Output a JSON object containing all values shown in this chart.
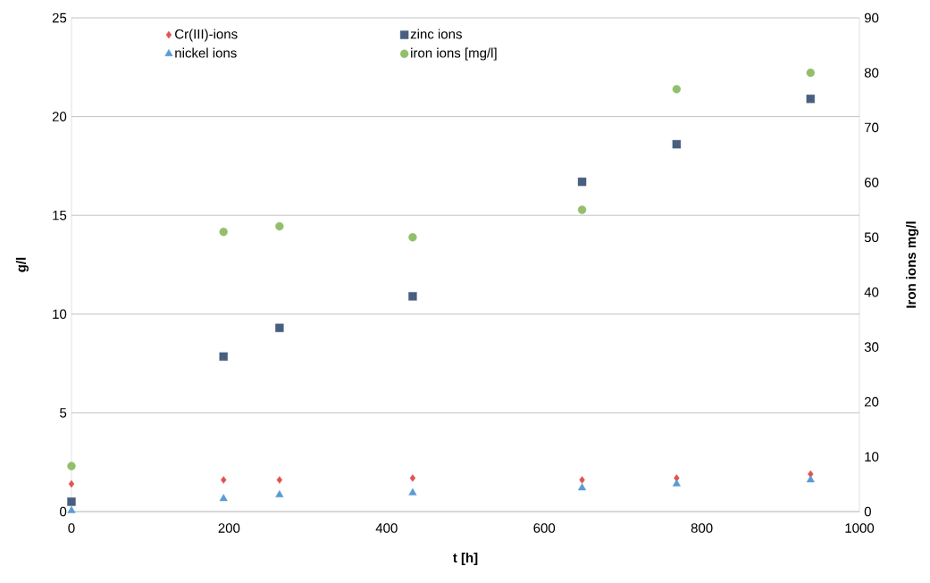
{
  "chart_data": {
    "type": "scatter",
    "xlabel": "t [h]",
    "ylabel": "g/l",
    "y2label": "Iron ions mg/l",
    "x": [
      0,
      193,
      264,
      433,
      648,
      768,
      938
    ],
    "series": [
      {
        "name": "Cr(III)-ions",
        "color": "#e2534f",
        "marker": "diamond",
        "values": [
          1.4,
          1.6,
          1.6,
          1.7,
          1.6,
          1.7,
          1.9
        ]
      },
      {
        "name": "zinc ions",
        "color": "#485f7f",
        "marker": "square",
        "values": [
          0.5,
          7.85,
          9.3,
          10.9,
          16.7,
          18.6,
          20.9
        ]
      },
      {
        "name": "nickel ions",
        "color": "#5b9bd5",
        "marker": "triangle",
        "values": [
          0.05,
          0.65,
          0.85,
          0.95,
          1.2,
          1.4,
          1.6
        ]
      },
      {
        "name": "iron ions [mg/l]",
        "color": "#93bf6c",
        "marker": "circle",
        "axis": "y2",
        "values": [
          8.3,
          51,
          52,
          50,
          55,
          77,
          80
        ]
      }
    ],
    "xlim": [
      0,
      1000
    ],
    "xticks": [
      0,
      200,
      400,
      600,
      800,
      1000
    ],
    "ylim": [
      0,
      25
    ],
    "yticks": [
      0,
      5,
      10,
      15,
      20,
      25
    ],
    "y2lim": [
      0,
      90
    ],
    "y2ticks": [
      0,
      10,
      20,
      30,
      40,
      50,
      60,
      70,
      80,
      90
    ],
    "grid": "y",
    "legend": "top left"
  }
}
